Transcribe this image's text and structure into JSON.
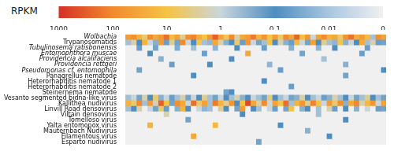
{
  "chart_data": {
    "type": "heatmap",
    "tick_labels": "y",
    "rows": [
      "Wolbachia",
      "Trypanosomatids",
      "Tubulinosema ratisbonensis",
      "Entomophthora muscae",
      "Providencia alcalifaciens",
      "Providencia rettgeri",
      "Pseudomonas cf. entomophila",
      "Panagrellus nematode",
      "Heterorhabditis nematode 1",
      "Heterorhabditis nematode 2",
      "Steinernema nematode",
      "Vesanto segmented bidna-like virus",
      "Kallithea nudivirus",
      "Linvill Road densovirus",
      "Viltain densovirus",
      "Tomelloso virus",
      "Yalta entomopox virus",
      "Mauternbach Nudivirus",
      "Filamentous virus",
      "Esparto nudivirus"
    ],
    "cells": [
      [
        50,
        80,
        20,
        5,
        100,
        30,
        60,
        200,
        15,
        40,
        3,
        80,
        120,
        25,
        10,
        60,
        300,
        40,
        8,
        90,
        2,
        30,
        50,
        150,
        20,
        70,
        10,
        45,
        6,
        100,
        35,
        250,
        12,
        60,
        1,
        40,
        90,
        20,
        30,
        5,
        70,
        180,
        25,
        50,
        15,
        0.5,
        80,
        40
      ],
      [
        0.5,
        2,
        0.1,
        20,
        1,
        0.3,
        50,
        0.05,
        3,
        0.2,
        100,
        1,
        0.1,
        8,
        0.5,
        0.02,
        30,
        2,
        0.3,
        0.1,
        5,
        0.05,
        60,
        1,
        0.2,
        0.5,
        10,
        0.1,
        2,
        0.3,
        0.05,
        15,
        1,
        0.2,
        40,
        0.1,
        3,
        0.5,
        0.02,
        8,
        0.3,
        1,
        0.1,
        25,
        0.5,
        2,
        0.05,
        0.2
      ],
      [
        0,
        0,
        0.05,
        0,
        0,
        0.2,
        0,
        0,
        0,
        0.03,
        0,
        0,
        0.5,
        0,
        0,
        0,
        0.02,
        0,
        0,
        0,
        0.1,
        0,
        0,
        0,
        0,
        0.05,
        0,
        0,
        0,
        0,
        0.3,
        0,
        0,
        0,
        0,
        0.02,
        0,
        0,
        0.1,
        0,
        0,
        0,
        0,
        0,
        0.05,
        0,
        0,
        0
      ],
      [
        0,
        0,
        0,
        0,
        0.1,
        0,
        0,
        0,
        0,
        0,
        0,
        0,
        0,
        0,
        0.05,
        0,
        0,
        0,
        0,
        0,
        0,
        0,
        30,
        0,
        0,
        0,
        0,
        0,
        0,
        0,
        0,
        0,
        0.2,
        0,
        0,
        0,
        0,
        0,
        0,
        0,
        0,
        0,
        0,
        0.05,
        0,
        0,
        0,
        0
      ],
      [
        0,
        0,
        0,
        0,
        0,
        0,
        0.3,
        0,
        0,
        0,
        0,
        0,
        0,
        0,
        0,
        0,
        0,
        0,
        0,
        0.1,
        0,
        0,
        0,
        0,
        0,
        0,
        0,
        0,
        0,
        0,
        0,
        0,
        0,
        0,
        0,
        0,
        0.5,
        0,
        0,
        0,
        0,
        0,
        0,
        0,
        0,
        0,
        0,
        0
      ],
      [
        0,
        0,
        0,
        0,
        0,
        0,
        0,
        0,
        0.05,
        0,
        0,
        0,
        0,
        0,
        0,
        0.1,
        0,
        0,
        0,
        0,
        0,
        0,
        0,
        0,
        0,
        0,
        0.02,
        0,
        0,
        0,
        0,
        0,
        0,
        0,
        0,
        0,
        0,
        0,
        0,
        0,
        0.3,
        0,
        0,
        0,
        0,
        0,
        0,
        0
      ],
      [
        0,
        0,
        0.2,
        0,
        0,
        0,
        0,
        0,
        0,
        0,
        0,
        0,
        0,
        0,
        0,
        0,
        0,
        0,
        0,
        0,
        0,
        0,
        0,
        0,
        0,
        0,
        0,
        0,
        0.05,
        0,
        0,
        0,
        0,
        0,
        0,
        0,
        0,
        0,
        0,
        0,
        0,
        0,
        0,
        0,
        0,
        0,
        0,
        0.1
      ],
      [
        0,
        0,
        0,
        0,
        0,
        0,
        0,
        0,
        0,
        0,
        0,
        0,
        0.1,
        0,
        0,
        0,
        0,
        0,
        0,
        0,
        0,
        0,
        0,
        0,
        0,
        0,
        0,
        0,
        0,
        0,
        0,
        0,
        0,
        0,
        0,
        0,
        0,
        0,
        0,
        0,
        0.2,
        0,
        0,
        0,
        0,
        0,
        0,
        0
      ],
      [
        0,
        0,
        0,
        0,
        0,
        0,
        0,
        0,
        0,
        0,
        0,
        0,
        0,
        0,
        0,
        0,
        0,
        0,
        0,
        0,
        0,
        0,
        0,
        0,
        0,
        0.1,
        0,
        0,
        0,
        0,
        0,
        0,
        0,
        0,
        0,
        0,
        0,
        0,
        0,
        0,
        0,
        0,
        0,
        0,
        0,
        0,
        0,
        0
      ],
      [
        0,
        0,
        0,
        0,
        0,
        0,
        0,
        0,
        0,
        0,
        0,
        0,
        0,
        0,
        0,
        0,
        0,
        0,
        0,
        0,
        0,
        0,
        0,
        0,
        0,
        0,
        0,
        0,
        0,
        0,
        0.05,
        0,
        0,
        0,
        0,
        0,
        0,
        0,
        0,
        0,
        0,
        0,
        0,
        0,
        0,
        0,
        0,
        0
      ],
      [
        0,
        0,
        0,
        0,
        0,
        0,
        0,
        0,
        0,
        0,
        0,
        0,
        0,
        0,
        0,
        0,
        0,
        0,
        0.2,
        0.1,
        0,
        0,
        0,
        0,
        0,
        0,
        0,
        0,
        0,
        0,
        0,
        0,
        0,
        0,
        0,
        0,
        0,
        0,
        0,
        0,
        0,
        0,
        0,
        0,
        0,
        0,
        0,
        0
      ],
      [
        0.5,
        1,
        0.2,
        2,
        0.1,
        5,
        0.3,
        1,
        0.05,
        0.5,
        2,
        0.2,
        1,
        0.1,
        3,
        0.5,
        0.2,
        1,
        0.1,
        0.5,
        2,
        0.3,
        0.1,
        1,
        0.5,
        0.2,
        4,
        0.1,
        0.5,
        1,
        0.2,
        0.3,
        2,
        0.1,
        0.5,
        1,
        0.05,
        0.3,
        2,
        0.5,
        0.1,
        1,
        0.2,
        0.5,
        3,
        0.1,
        0.5,
        0.2
      ],
      [
        20,
        5,
        100,
        0.5,
        50,
        2,
        300,
        10,
        0.2,
        80,
        30,
        1,
        200,
        5,
        40,
        0.5,
        150,
        20,
        3,
        60,
        0.1,
        10,
        500,
        30,
        2,
        100,
        1,
        40,
        8,
        200,
        0.5,
        20,
        60,
        3,
        120,
        10,
        1,
        50,
        5,
        80,
        0.3,
        30,
        100,
        2,
        15,
        60,
        1,
        40
      ],
      [
        0.5,
        0.1,
        2,
        0,
        1,
        0.2,
        5,
        0.05,
        0,
        0.3,
        20,
        0.1,
        0,
        1,
        0.02,
        0.5,
        0,
        3,
        0.1,
        0,
        0.2,
        50,
        0,
        0.1,
        0.5,
        0,
        1,
        0.05,
        0,
        0.2,
        10,
        0,
        0.3,
        0.1,
        0,
        0.5,
        0,
        2,
        0.05,
        0,
        0.1,
        0,
        0.3,
        0,
        1,
        0,
        0.05,
        0.2
      ],
      [
        0,
        0,
        0,
        0,
        0,
        0,
        0,
        2,
        0,
        0,
        0,
        0,
        0,
        0,
        0,
        0,
        0,
        0,
        0,
        0,
        0,
        0.1,
        0,
        0,
        0,
        0,
        0,
        0,
        0,
        0,
        0,
        0,
        0,
        0,
        0,
        0.5,
        0,
        0,
        0,
        0,
        0,
        0,
        0,
        0,
        0,
        0,
        0,
        0
      ],
      [
        0,
        0,
        0,
        0,
        0,
        0,
        0,
        0,
        0,
        0,
        0,
        0.2,
        0,
        0,
        0,
        0,
        0,
        0,
        0,
        0,
        0,
        0,
        0,
        0,
        0,
        0,
        0,
        0,
        0,
        0,
        0,
        0,
        0,
        0,
        0,
        0,
        0,
        0,
        0,
        0,
        0.1,
        0,
        0,
        0,
        0,
        0,
        0,
        0
      ],
      [
        0,
        0,
        0,
        0,
        20,
        0,
        0,
        0,
        0,
        0,
        0,
        0,
        0,
        0,
        0,
        0,
        15,
        0,
        0,
        0,
        0,
        0,
        0,
        0,
        0,
        0,
        0,
        0,
        0.1,
        0,
        0,
        0,
        0,
        0,
        0,
        0,
        0,
        0,
        0,
        0,
        0,
        0,
        0,
        0,
        0,
        0,
        0,
        0
      ],
      [
        0,
        0,
        0,
        0,
        0,
        0,
        0,
        0,
        0,
        0,
        0,
        0,
        0,
        0,
        0,
        0,
        0,
        0,
        0,
        0,
        0,
        0,
        0,
        0,
        0,
        0,
        0,
        0,
        0,
        0,
        0,
        0,
        0,
        0.3,
        0,
        0,
        0,
        0,
        0,
        0,
        0,
        0,
        0,
        0,
        0,
        0,
        0,
        0
      ],
      [
        0,
        0,
        0,
        0,
        0,
        0,
        0,
        0,
        0,
        0,
        0,
        0,
        30,
        0,
        0,
        0,
        0,
        0,
        0,
        0,
        0,
        0,
        0,
        0,
        0,
        0,
        0,
        0,
        0,
        0,
        0,
        0,
        0,
        0,
        0,
        0,
        0,
        0.1,
        0,
        0,
        0,
        0,
        0,
        0,
        0,
        0,
        0,
        0
      ],
      [
        0,
        0,
        0,
        0,
        0,
        0,
        0,
        0,
        0,
        0,
        0,
        0,
        0,
        0,
        0,
        0,
        0,
        0,
        0,
        0,
        0,
        0,
        0,
        0,
        0.2,
        0,
        0,
        0,
        0,
        0,
        0,
        0,
        0,
        0,
        0,
        0,
        0,
        0,
        0,
        0,
        0,
        0,
        0,
        0,
        0,
        0,
        0,
        0
      ]
    ],
    "colorbar": {
      "label": "RPKM",
      "ticks": [
        1000,
        100,
        10,
        1,
        0.1,
        0.01,
        0
      ],
      "colors": [
        "#d62f27",
        "#f28a2e",
        "#f6c343",
        "#c9d6dc",
        "#4f8dc0",
        "#a9c6e0",
        "#f0f0f0"
      ]
    }
  }
}
